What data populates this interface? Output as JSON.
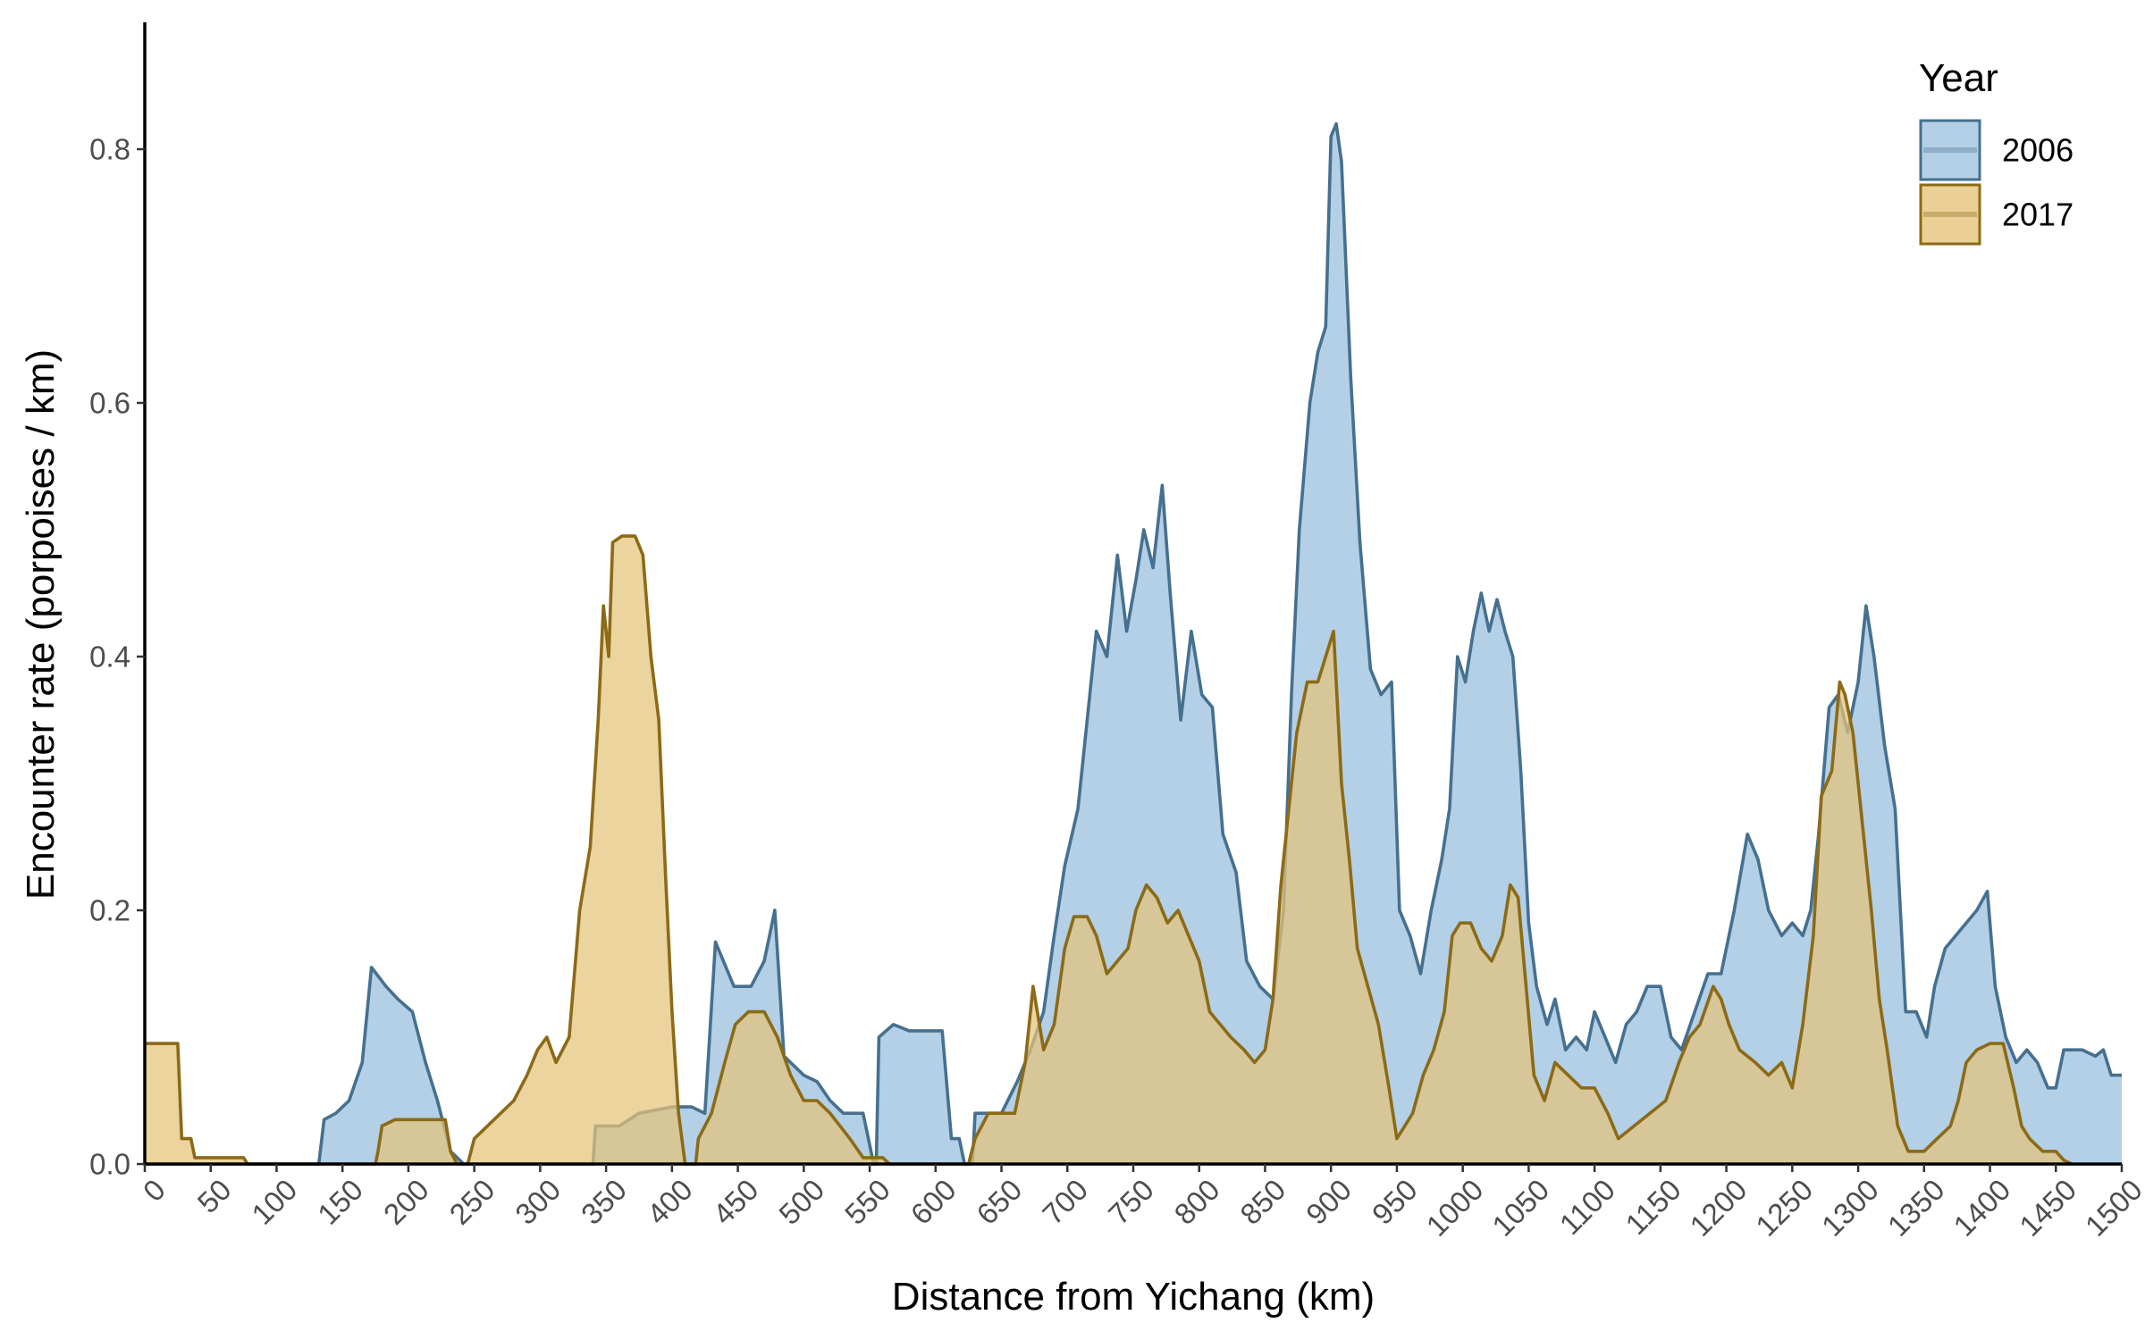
{
  "chart_data": {
    "type": "area",
    "xlabel": "Distance from Yichang (km)",
    "ylabel": "Encounter rate (porpoises / km)",
    "xlim": [
      0,
      1500
    ],
    "ylim": [
      0,
      0.9
    ],
    "xticks": [
      "0",
      "50",
      "100",
      "150",
      "200",
      "250",
      "300",
      "350",
      "400",
      "450",
      "500",
      "550",
      "600",
      "650",
      "700",
      "750",
      "800",
      "850",
      "900",
      "950",
      "1000",
      "1050",
      "1100",
      "1150",
      "1200",
      "1250",
      "1300",
      "1350",
      "1400",
      "1450",
      "1500"
    ],
    "yticks": [
      "0.0",
      "0.2",
      "0.4",
      "0.6",
      "0.8"
    ],
    "grid": false,
    "legend": {
      "title": "Year",
      "placement": "top-right"
    },
    "series": [
      {
        "name": "2006",
        "fill": "#a6c8e3",
        "stroke": "#46708f",
        "points": [
          [
            0,
            0
          ],
          [
            132,
            0
          ],
          [
            136,
            0.035
          ],
          [
            145,
            0.04
          ],
          [
            155,
            0.05
          ],
          [
            165,
            0.08
          ],
          [
            172,
            0.155
          ],
          [
            183,
            0.14
          ],
          [
            192,
            0.13
          ],
          [
            203,
            0.12
          ],
          [
            213,
            0.08
          ],
          [
            222,
            0.05
          ],
          [
            232,
            0.01
          ],
          [
            242,
            0
          ],
          [
            340,
            0
          ],
          [
            342,
            0.03
          ],
          [
            360,
            0.03
          ],
          [
            375,
            0.04
          ],
          [
            400,
            0.045
          ],
          [
            415,
            0.045
          ],
          [
            425,
            0.04
          ],
          [
            433,
            0.175
          ],
          [
            447,
            0.14
          ],
          [
            460,
            0.14
          ],
          [
            470,
            0.16
          ],
          [
            478,
            0.2
          ],
          [
            485,
            0.085
          ],
          [
            500,
            0.07
          ],
          [
            510,
            0.065
          ],
          [
            520,
            0.05
          ],
          [
            530,
            0.04
          ],
          [
            545,
            0.04
          ],
          [
            553,
            0
          ],
          [
            555,
            0
          ],
          [
            557,
            0.1
          ],
          [
            568,
            0.11
          ],
          [
            580,
            0.105
          ],
          [
            605,
            0.105
          ],
          [
            612,
            0.02
          ],
          [
            618,
            0.02
          ],
          [
            622,
            0
          ],
          [
            628,
            0
          ],
          [
            630,
            0.04
          ],
          [
            650,
            0.04
          ],
          [
            662,
            0.065
          ],
          [
            672,
            0.09
          ],
          [
            682,
            0.12
          ],
          [
            690,
            0.18
          ],
          [
            698,
            0.235
          ],
          [
            708,
            0.28
          ],
          [
            716,
            0.36
          ],
          [
            722,
            0.42
          ],
          [
            730,
            0.4
          ],
          [
            738,
            0.48
          ],
          [
            745,
            0.42
          ],
          [
            752,
            0.46
          ],
          [
            758,
            0.5
          ],
          [
            765,
            0.47
          ],
          [
            772,
            0.535
          ],
          [
            778,
            0.45
          ],
          [
            786,
            0.35
          ],
          [
            794,
            0.42
          ],
          [
            802,
            0.37
          ],
          [
            810,
            0.36
          ],
          [
            818,
            0.26
          ],
          [
            828,
            0.23
          ],
          [
            836,
            0.16
          ],
          [
            846,
            0.14
          ],
          [
            856,
            0.13
          ],
          [
            864,
            0.2
          ],
          [
            870,
            0.37
          ],
          [
            876,
            0.5
          ],
          [
            884,
            0.6
          ],
          [
            890,
            0.64
          ],
          [
            896,
            0.66
          ],
          [
            900,
            0.81
          ],
          [
            904,
            0.82
          ],
          [
            908,
            0.79
          ],
          [
            915,
            0.62
          ],
          [
            922,
            0.49
          ],
          [
            930,
            0.39
          ],
          [
            938,
            0.37
          ],
          [
            946,
            0.38
          ],
          [
            952,
            0.2
          ],
          [
            960,
            0.18
          ],
          [
            968,
            0.15
          ],
          [
            976,
            0.2
          ],
          [
            984,
            0.24
          ],
          [
            990,
            0.28
          ],
          [
            996,
            0.4
          ],
          [
            1002,
            0.38
          ],
          [
            1008,
            0.42
          ],
          [
            1014,
            0.45
          ],
          [
            1020,
            0.42
          ],
          [
            1026,
            0.445
          ],
          [
            1032,
            0.42
          ],
          [
            1038,
            0.4
          ],
          [
            1044,
            0.31
          ],
          [
            1050,
            0.19
          ],
          [
            1056,
            0.14
          ],
          [
            1064,
            0.11
          ],
          [
            1070,
            0.13
          ],
          [
            1078,
            0.09
          ],
          [
            1086,
            0.1
          ],
          [
            1094,
            0.09
          ],
          [
            1100,
            0.12
          ],
          [
            1108,
            0.1
          ],
          [
            1116,
            0.08
          ],
          [
            1124,
            0.11
          ],
          [
            1132,
            0.12
          ],
          [
            1140,
            0.14
          ],
          [
            1150,
            0.14
          ],
          [
            1158,
            0.1
          ],
          [
            1166,
            0.09
          ],
          [
            1176,
            0.12
          ],
          [
            1186,
            0.15
          ],
          [
            1196,
            0.15
          ],
          [
            1206,
            0.2
          ],
          [
            1216,
            0.26
          ],
          [
            1224,
            0.24
          ],
          [
            1232,
            0.2
          ],
          [
            1242,
            0.18
          ],
          [
            1250,
            0.19
          ],
          [
            1258,
            0.18
          ],
          [
            1264,
            0.2
          ],
          [
            1270,
            0.26
          ],
          [
            1278,
            0.36
          ],
          [
            1285,
            0.37
          ],
          [
            1292,
            0.34
          ],
          [
            1300,
            0.38
          ],
          [
            1306,
            0.44
          ],
          [
            1312,
            0.4
          ],
          [
            1320,
            0.33
          ],
          [
            1328,
            0.28
          ],
          [
            1336,
            0.12
          ],
          [
            1344,
            0.12
          ],
          [
            1352,
            0.1
          ],
          [
            1358,
            0.14
          ],
          [
            1366,
            0.17
          ],
          [
            1374,
            0.18
          ],
          [
            1382,
            0.19
          ],
          [
            1390,
            0.2
          ],
          [
            1398,
            0.215
          ],
          [
            1404,
            0.14
          ],
          [
            1412,
            0.1
          ],
          [
            1420,
            0.08
          ],
          [
            1428,
            0.09
          ],
          [
            1436,
            0.08
          ],
          [
            1444,
            0.06
          ],
          [
            1450,
            0.06
          ],
          [
            1456,
            0.09
          ],
          [
            1470,
            0.09
          ],
          [
            1480,
            0.085
          ],
          [
            1486,
            0.09
          ],
          [
            1492,
            0.07
          ],
          [
            1500,
            0.07
          ]
        ]
      },
      {
        "name": "2017",
        "fill": "#e5c47a",
        "stroke": "#8c6a16",
        "points": [
          [
            0,
            0.095
          ],
          [
            25,
            0.095
          ],
          [
            28,
            0.02
          ],
          [
            35,
            0.02
          ],
          [
            38,
            0.005
          ],
          [
            75,
            0.005
          ],
          [
            78,
            0
          ],
          [
            175,
            0
          ],
          [
            177,
            0.01
          ],
          [
            180,
            0.03
          ],
          [
            190,
            0.035
          ],
          [
            228,
            0.035
          ],
          [
            232,
            0.01
          ],
          [
            237,
            0
          ],
          [
            245,
            0
          ],
          [
            250,
            0.02
          ],
          [
            260,
            0.03
          ],
          [
            270,
            0.04
          ],
          [
            280,
            0.05
          ],
          [
            290,
            0.07
          ],
          [
            298,
            0.09
          ],
          [
            305,
            0.1
          ],
          [
            312,
            0.08
          ],
          [
            322,
            0.1
          ],
          [
            330,
            0.2
          ],
          [
            338,
            0.25
          ],
          [
            344,
            0.35
          ],
          [
            348,
            0.44
          ],
          [
            352,
            0.4
          ],
          [
            355,
            0.49
          ],
          [
            362,
            0.495
          ],
          [
            372,
            0.495
          ],
          [
            378,
            0.48
          ],
          [
            384,
            0.4
          ],
          [
            390,
            0.35
          ],
          [
            395,
            0.23
          ],
          [
            400,
            0.12
          ],
          [
            405,
            0.04
          ],
          [
            410,
            0
          ],
          [
            418,
            0
          ],
          [
            420,
            0.02
          ],
          [
            430,
            0.04
          ],
          [
            440,
            0.08
          ],
          [
            448,
            0.11
          ],
          [
            458,
            0.12
          ],
          [
            470,
            0.12
          ],
          [
            480,
            0.1
          ],
          [
            490,
            0.07
          ],
          [
            500,
            0.05
          ],
          [
            510,
            0.05
          ],
          [
            520,
            0.04
          ],
          [
            535,
            0.02
          ],
          [
            545,
            0.005
          ],
          [
            560,
            0.005
          ],
          [
            565,
            0
          ],
          [
            625,
            0
          ],
          [
            630,
            0.02
          ],
          [
            640,
            0.04
          ],
          [
            660,
            0.04
          ],
          [
            668,
            0.08
          ],
          [
            674,
            0.14
          ],
          [
            682,
            0.09
          ],
          [
            690,
            0.11
          ],
          [
            698,
            0.17
          ],
          [
            705,
            0.195
          ],
          [
            715,
            0.195
          ],
          [
            722,
            0.18
          ],
          [
            730,
            0.15
          ],
          [
            738,
            0.16
          ],
          [
            746,
            0.17
          ],
          [
            752,
            0.2
          ],
          [
            760,
            0.22
          ],
          [
            768,
            0.21
          ],
          [
            776,
            0.19
          ],
          [
            784,
            0.2
          ],
          [
            792,
            0.18
          ],
          [
            800,
            0.16
          ],
          [
            808,
            0.12
          ],
          [
            816,
            0.11
          ],
          [
            824,
            0.1
          ],
          [
            834,
            0.09
          ],
          [
            842,
            0.08
          ],
          [
            850,
            0.09
          ],
          [
            856,
            0.13
          ],
          [
            862,
            0.22
          ],
          [
            868,
            0.28
          ],
          [
            874,
            0.34
          ],
          [
            882,
            0.38
          ],
          [
            890,
            0.38
          ],
          [
            896,
            0.4
          ],
          [
            902,
            0.42
          ],
          [
            908,
            0.3
          ],
          [
            914,
            0.24
          ],
          [
            920,
            0.17
          ],
          [
            928,
            0.14
          ],
          [
            936,
            0.11
          ],
          [
            944,
            0.06
          ],
          [
            950,
            0.02
          ],
          [
            956,
            0.03
          ],
          [
            962,
            0.04
          ],
          [
            970,
            0.07
          ],
          [
            978,
            0.09
          ],
          [
            986,
            0.12
          ],
          [
            992,
            0.18
          ],
          [
            998,
            0.19
          ],
          [
            1006,
            0.19
          ],
          [
            1014,
            0.17
          ],
          [
            1022,
            0.16
          ],
          [
            1030,
            0.18
          ],
          [
            1036,
            0.22
          ],
          [
            1042,
            0.21
          ],
          [
            1048,
            0.14
          ],
          [
            1054,
            0.07
          ],
          [
            1062,
            0.05
          ],
          [
            1070,
            0.08
          ],
          [
            1080,
            0.07
          ],
          [
            1090,
            0.06
          ],
          [
            1100,
            0.06
          ],
          [
            1110,
            0.04
          ],
          [
            1118,
            0.02
          ],
          [
            1130,
            0.03
          ],
          [
            1142,
            0.04
          ],
          [
            1154,
            0.05
          ],
          [
            1164,
            0.08
          ],
          [
            1172,
            0.1
          ],
          [
            1180,
            0.11
          ],
          [
            1190,
            0.14
          ],
          [
            1196,
            0.13
          ],
          [
            1202,
            0.11
          ],
          [
            1210,
            0.09
          ],
          [
            1222,
            0.08
          ],
          [
            1232,
            0.07
          ],
          [
            1242,
            0.08
          ],
          [
            1250,
            0.06
          ],
          [
            1258,
            0.11
          ],
          [
            1266,
            0.18
          ],
          [
            1272,
            0.29
          ],
          [
            1280,
            0.31
          ],
          [
            1286,
            0.38
          ],
          [
            1290,
            0.37
          ],
          [
            1296,
            0.34
          ],
          [
            1304,
            0.26
          ],
          [
            1310,
            0.2
          ],
          [
            1316,
            0.13
          ],
          [
            1322,
            0.09
          ],
          [
            1330,
            0.03
          ],
          [
            1338,
            0.01
          ],
          [
            1350,
            0.01
          ],
          [
            1360,
            0.02
          ],
          [
            1370,
            0.03
          ],
          [
            1376,
            0.05
          ],
          [
            1382,
            0.08
          ],
          [
            1390,
            0.09
          ],
          [
            1400,
            0.095
          ],
          [
            1410,
            0.095
          ],
          [
            1418,
            0.06
          ],
          [
            1424,
            0.03
          ],
          [
            1430,
            0.02
          ],
          [
            1440,
            0.01
          ],
          [
            1450,
            0.01
          ],
          [
            1456,
            0.003
          ],
          [
            1462,
            0
          ]
        ]
      }
    ]
  }
}
